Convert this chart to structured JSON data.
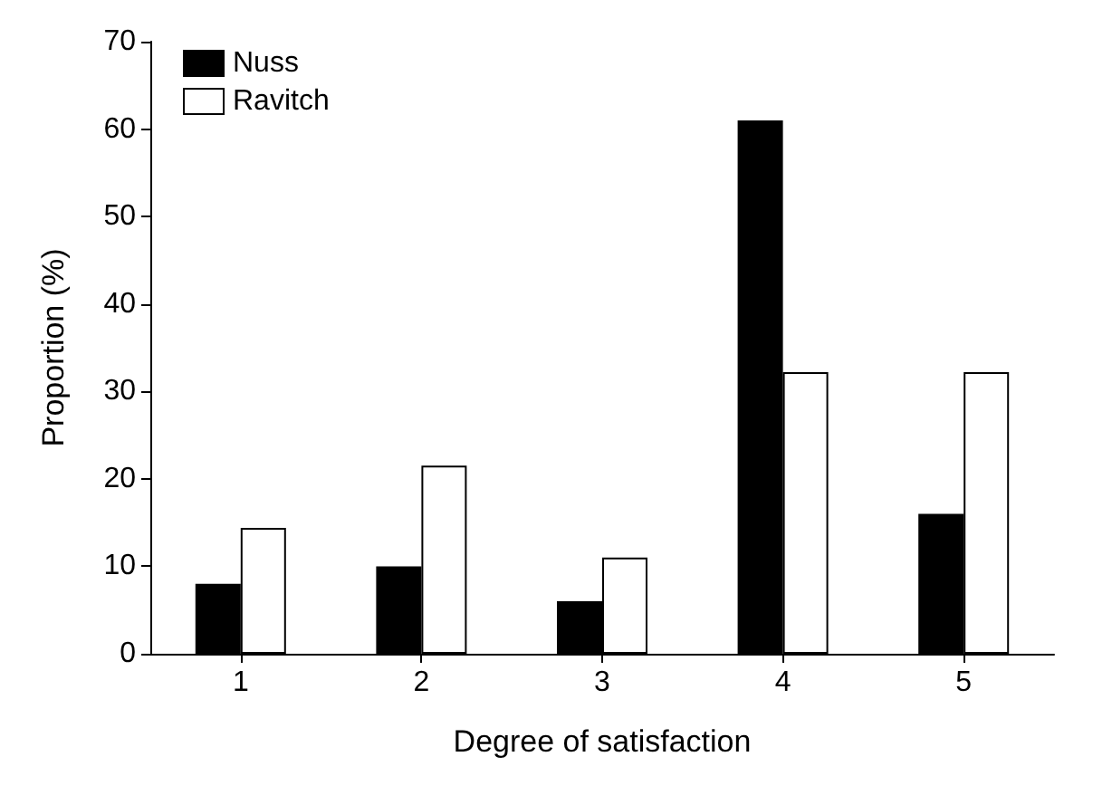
{
  "chart_data": {
    "type": "bar",
    "xlabel": "Degree of satisfaction",
    "ylabel": "Proportion (%)",
    "categories": [
      "1",
      "2",
      "3",
      "4",
      "5"
    ],
    "series": [
      {
        "name": "Nuss",
        "color": "#000000",
        "values": [
          8,
          10,
          6,
          61,
          16
        ]
      },
      {
        "name": "Ravitch",
        "color": "#ffffff",
        "values": [
          14.4,
          21.5,
          11,
          32.2,
          32.2
        ]
      }
    ],
    "ylim": [
      0,
      70
    ],
    "yticks": [
      0,
      10,
      20,
      30,
      40,
      50,
      60,
      70
    ],
    "grid": false,
    "legend": "top left"
  }
}
